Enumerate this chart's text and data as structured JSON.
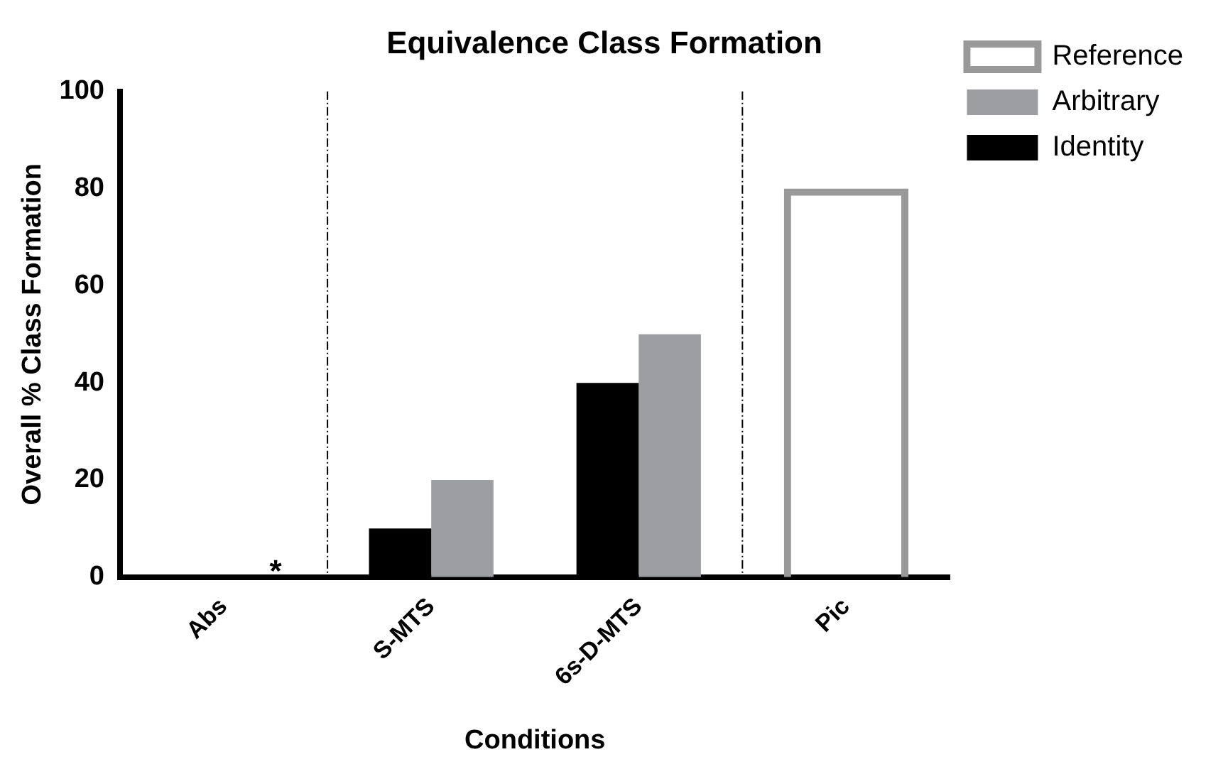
{
  "chart_data": {
    "type": "bar",
    "title": "Equivalence Class Formation",
    "xlabel": "Conditions",
    "ylabel": "Overall % Class Formation",
    "categories": [
      "Abs",
      "S-MTS",
      "6s-D-MTS",
      "Pic"
    ],
    "series": [
      {
        "name": "Identity",
        "color": "#000000",
        "values": [
          0,
          10,
          40,
          null
        ]
      },
      {
        "name": "Arbitrary",
        "color": "#9d9ea2",
        "values": [
          0,
          20,
          50,
          null
        ]
      },
      {
        "name": "Reference",
        "color": "#999999",
        "values": [
          null,
          null,
          null,
          80
        ]
      }
    ],
    "ylim": [
      0,
      100
    ],
    "yticks": [
      0,
      20,
      40,
      60,
      80,
      100
    ],
    "grid": false,
    "legend": "top right",
    "annotations": [
      {
        "text": "*",
        "x": "Abs",
        "y": 0
      }
    ]
  }
}
